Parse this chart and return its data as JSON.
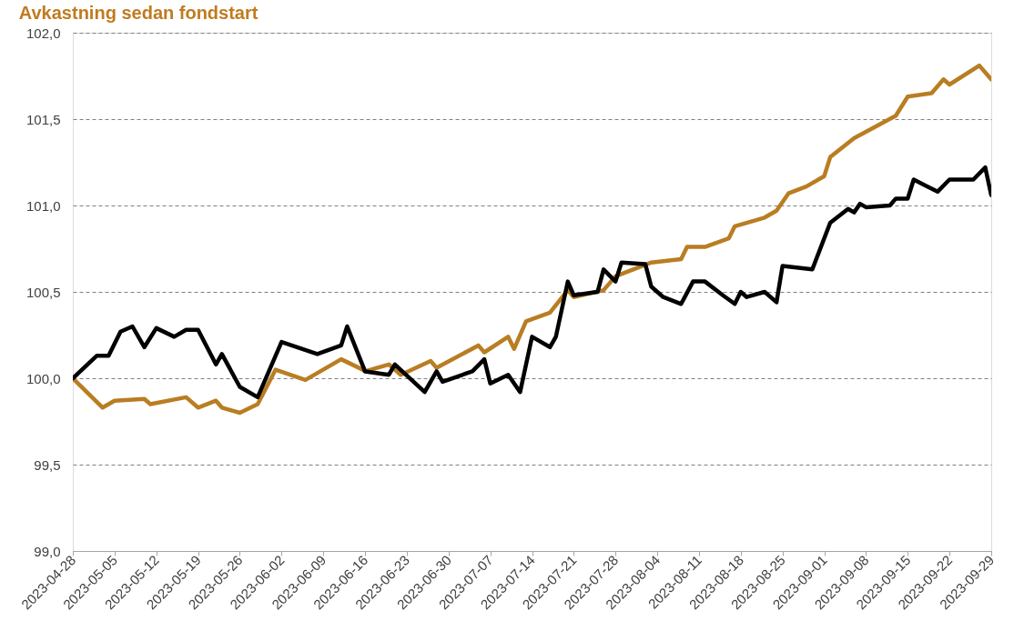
{
  "chart_data": {
    "type": "line",
    "title": "Avkastning sedan fondstart",
    "ylim": [
      99.0,
      102.0
    ],
    "yticks": [
      {
        "value": 99.0,
        "label": "99,0"
      },
      {
        "value": 99.5,
        "label": "99,5"
      },
      {
        "value": 100.0,
        "label": "100,0"
      },
      {
        "value": 100.5,
        "label": "100,5"
      },
      {
        "value": 101.0,
        "label": "101,0"
      },
      {
        "value": 101.5,
        "label": "101,5"
      },
      {
        "value": 102.0,
        "label": "102,0"
      }
    ],
    "xlim": [
      "2023-04-28",
      "2023-09-29"
    ],
    "xticks": [
      "2023-04-28",
      "2023-05-05",
      "2023-05-12",
      "2023-05-19",
      "2023-05-26",
      "2023-06-02",
      "2023-06-09",
      "2023-06-16",
      "2023-06-23",
      "2023-06-30",
      "2023-07-07",
      "2023-07-14",
      "2023-07-21",
      "2023-07-28",
      "2023-08-04",
      "2023-08-11",
      "2023-08-18",
      "2023-08-25",
      "2023-09-01",
      "2023-09-08",
      "2023-09-15",
      "2023-09-22",
      "2023-09-29"
    ],
    "grid": "y",
    "legend": false,
    "line_style": "solid",
    "marker": "none",
    "series": [
      {
        "color": "#b97d22",
        "x": [
          "2023-04-28",
          "2023-05-03",
          "2023-05-05",
          "2023-05-10",
          "2023-05-11",
          "2023-05-17",
          "2023-05-19",
          "2023-05-22",
          "2023-05-23",
          "2023-05-26",
          "2023-05-29",
          "2023-06-01",
          "2023-06-06",
          "2023-06-12",
          "2023-06-15",
          "2023-06-16",
          "2023-06-20",
          "2023-06-22",
          "2023-06-27",
          "2023-06-28",
          "2023-07-05",
          "2023-07-06",
          "2023-07-10",
          "2023-07-11",
          "2023-07-13",
          "2023-07-17",
          "2023-07-20",
          "2023-07-21",
          "2023-07-26",
          "2023-07-28",
          "2023-08-03",
          "2023-08-08",
          "2023-08-09",
          "2023-08-12",
          "2023-08-16",
          "2023-08-17",
          "2023-08-22",
          "2023-08-24",
          "2023-08-26",
          "2023-08-29",
          "2023-09-01",
          "2023-09-02",
          "2023-09-06",
          "2023-09-13",
          "2023-09-15",
          "2023-09-19",
          "2023-09-21",
          "2023-09-22",
          "2023-09-27",
          "2023-09-29"
        ],
        "values": [
          100.0,
          99.83,
          99.87,
          99.88,
          99.85,
          99.89,
          99.83,
          99.87,
          99.83,
          99.8,
          99.85,
          100.05,
          99.99,
          100.11,
          100.06,
          100.04,
          100.08,
          100.02,
          100.1,
          100.06,
          100.19,
          100.15,
          100.24,
          100.17,
          100.33,
          100.38,
          100.51,
          100.47,
          100.51,
          100.59,
          100.67,
          100.69,
          100.76,
          100.76,
          100.81,
          100.88,
          100.93,
          100.97,
          101.07,
          101.11,
          101.17,
          101.28,
          101.39,
          101.52,
          101.63,
          101.65,
          101.73,
          101.7,
          101.81,
          101.73
        ]
      },
      {
        "color": "#000000",
        "x": [
          "2023-04-28",
          "2023-05-02",
          "2023-05-04",
          "2023-05-06",
          "2023-05-08",
          "2023-05-10",
          "2023-05-12",
          "2023-05-15",
          "2023-05-17",
          "2023-05-19",
          "2023-05-22",
          "2023-05-23",
          "2023-05-26",
          "2023-05-29",
          "2023-06-02",
          "2023-06-08",
          "2023-06-12",
          "2023-06-13",
          "2023-06-16",
          "2023-06-20",
          "2023-06-21",
          "2023-06-26",
          "2023-06-28",
          "2023-06-29",
          "2023-07-04",
          "2023-07-06",
          "2023-07-07",
          "2023-07-10",
          "2023-07-12",
          "2023-07-14",
          "2023-07-17",
          "2023-07-18",
          "2023-07-20",
          "2023-07-21",
          "2023-07-25",
          "2023-07-26",
          "2023-07-28",
          "2023-07-29",
          "2023-08-02",
          "2023-08-03",
          "2023-08-05",
          "2023-08-08",
          "2023-08-10",
          "2023-08-12",
          "2023-08-15",
          "2023-08-17",
          "2023-08-18",
          "2023-08-19",
          "2023-08-22",
          "2023-08-24",
          "2023-08-25",
          "2023-08-30",
          "2023-09-02",
          "2023-09-05",
          "2023-09-06",
          "2023-09-07",
          "2023-09-08",
          "2023-09-12",
          "2023-09-13",
          "2023-09-15",
          "2023-09-16",
          "2023-09-20",
          "2023-09-22",
          "2023-09-26",
          "2023-09-28",
          "2023-09-29"
        ],
        "values": [
          100.0,
          100.13,
          100.13,
          100.27,
          100.3,
          100.18,
          100.29,
          100.24,
          100.28,
          100.28,
          100.08,
          100.14,
          99.95,
          99.89,
          100.21,
          100.14,
          100.19,
          100.3,
          100.04,
          100.02,
          100.08,
          99.92,
          100.04,
          99.98,
          100.04,
          100.11,
          99.97,
          100.02,
          99.92,
          100.24,
          100.18,
          100.24,
          100.56,
          100.48,
          100.5,
          100.63,
          100.56,
          100.67,
          100.66,
          100.53,
          100.47,
          100.43,
          100.56,
          100.56,
          100.48,
          100.43,
          100.5,
          100.47,
          100.5,
          100.44,
          100.65,
          100.63,
          100.9,
          100.98,
          100.96,
          101.01,
          100.99,
          101.0,
          101.04,
          101.04,
          101.15,
          101.08,
          101.15,
          101.15,
          101.22,
          101.06
        ]
      }
    ]
  }
}
